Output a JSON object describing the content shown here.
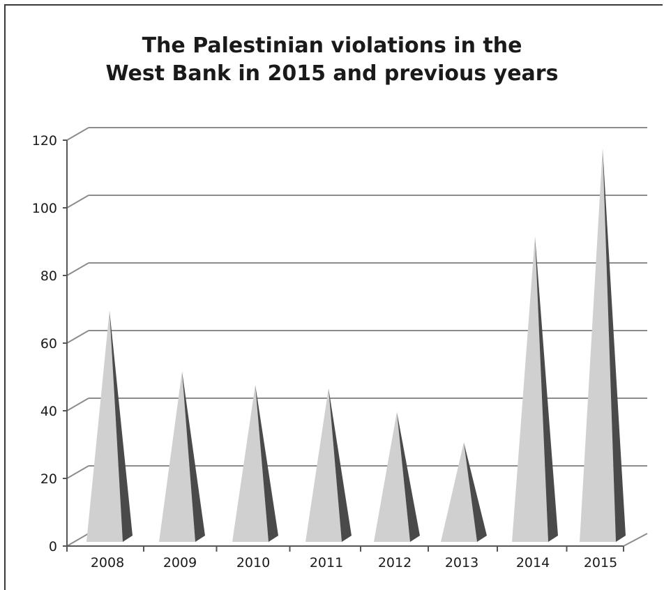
{
  "chart_data": {
    "type": "bar",
    "title_lines": [
      "The Palestinian violations in the",
      "West Bank in 2015 and previous years"
    ],
    "categories": [
      "2008",
      "2009",
      "2010",
      "2011",
      "2012",
      "2013",
      "2014",
      "2015"
    ],
    "values": [
      68,
      50,
      46,
      45,
      38,
      29,
      90,
      116
    ],
    "ylim": [
      0,
      120
    ],
    "yticks": [
      "0",
      "20",
      "40",
      "60",
      "80",
      "100",
      "120"
    ],
    "grid": true,
    "legend": "none",
    "colors": {
      "front": "#d0d0d0",
      "side": "#4a4a4a",
      "grid": "#8c8c8c"
    }
  }
}
